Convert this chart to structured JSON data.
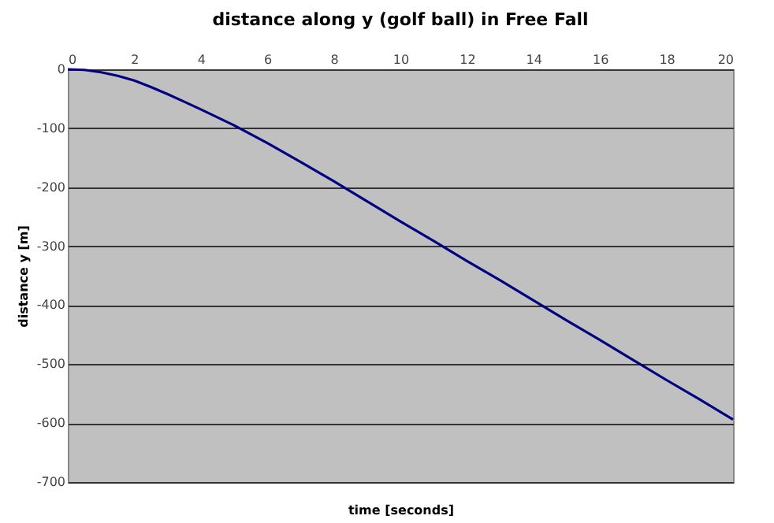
{
  "chart_data": {
    "type": "line",
    "title": "distance along y (golf ball) in Free Fall",
    "xlabel": "time [seconds]",
    "ylabel": "distance y [m]",
    "x": [
      0,
      0.5,
      1,
      1.5,
      2,
      2.5,
      3,
      3.5,
      4,
      5,
      6,
      7,
      8,
      9,
      10,
      11,
      12,
      13,
      14,
      15,
      16,
      17,
      18,
      19,
      20
    ],
    "series": [
      {
        "color": "#000080",
        "values": [
          0,
          -1,
          -5,
          -11,
          -19,
          -30,
          -42,
          -55,
          -68,
          -95,
          -125,
          -157,
          -190,
          -224,
          -258,
          -291,
          -325,
          -358,
          -392,
          -426,
          -459,
          -493,
          -527,
          -560,
          -594
        ]
      }
    ],
    "xlim": [
      0,
      20
    ],
    "xticks": [
      0,
      2,
      4,
      6,
      8,
      10,
      12,
      14,
      16,
      18,
      20
    ],
    "ylim": [
      -700,
      0
    ],
    "yticks": [
      0,
      -100,
      -200,
      -300,
      -400,
      -500,
      -600,
      -700
    ],
    "grid": "y",
    "marker": "none",
    "line_style": "solid"
  }
}
